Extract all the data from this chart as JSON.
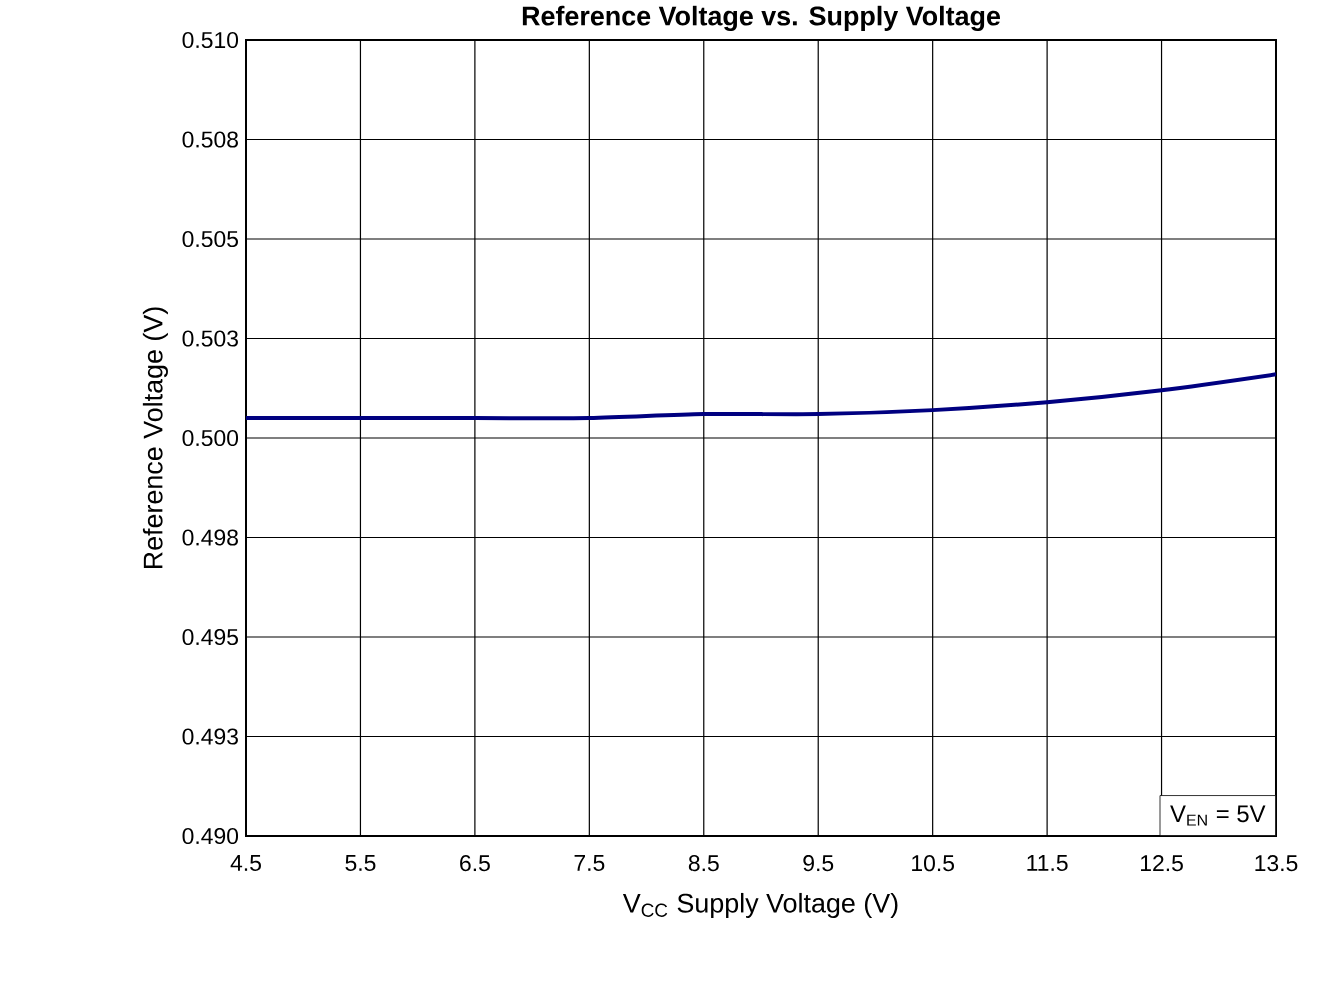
{
  "chart_data": {
    "type": "line",
    "title": "Reference Voltage vs. Supply Voltage",
    "xlabel": "V$_{CC}$ Supply Voltage (V)",
    "ylabel": "Reference Voltage (V)",
    "x": [
      4.5,
      5.5,
      6.5,
      7.5,
      8.5,
      9.5,
      10.5,
      11.5,
      12.5,
      13.5
    ],
    "series": [
      {
        "color": "#000080",
        "values": [
          0.5005,
          0.5005,
          0.5005,
          0.5005,
          0.5006,
          0.5006,
          0.5007,
          0.5009,
          0.5012,
          0.5016
        ]
      }
    ],
    "xlim": [
      4.5,
      13.5
    ],
    "ylim": [
      0.49,
      0.51
    ],
    "xticks": [
      4.5,
      5.5,
      6.5,
      7.5,
      8.5,
      9.5,
      10.5,
      11.5,
      12.5,
      13.5
    ],
    "yticks": [
      {
        "value": 0.49,
        "label": "0.490"
      },
      {
        "value": 0.4925,
        "label": "0.493"
      },
      {
        "value": 0.495,
        "label": "0.495"
      },
      {
        "value": 0.4975,
        "label": "0.498"
      },
      {
        "value": 0.5,
        "label": "0.500"
      },
      {
        "value": 0.5025,
        "label": "0.503"
      },
      {
        "value": 0.505,
        "label": "0.505"
      },
      {
        "value": 0.5075,
        "label": "0.508"
      },
      {
        "value": 0.51,
        "label": "0.510"
      }
    ],
    "grid": true,
    "marker": "none",
    "line_style": "solid",
    "annotations": [
      "V$_{EN}$ = 5V"
    ]
  }
}
